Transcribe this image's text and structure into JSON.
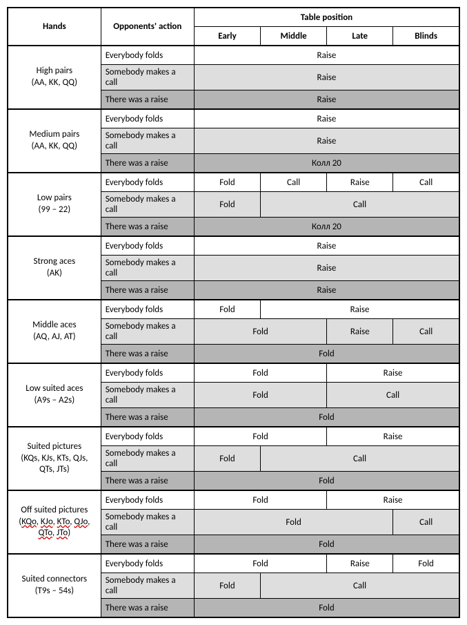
{
  "header": {
    "hands": "Hands",
    "action": "Opponents' action",
    "position": "Table position",
    "early": "Early",
    "middle": "Middle",
    "late": "Late",
    "blinds": "Blinds"
  },
  "opp": {
    "folds": "Everybody folds",
    "calls": "Somebody makes a call",
    "raise": "There was a raise"
  },
  "dec": {
    "raise": "Raise",
    "call": "Call",
    "fold": "Fold",
    "koll20": "Колл 20"
  },
  "hands": {
    "high_pairs_l1": "High pairs",
    "high_pairs_l2": "(AA, KK, QQ)",
    "medium_pairs_l1": "Medium pairs",
    "medium_pairs_l2": "(AA, KK, QQ)",
    "low_pairs_l1": "Low pairs",
    "low_pairs_l2": "(99 – 22)",
    "strong_aces_l1": "Strong aces",
    "strong_aces_l2": "(AK)",
    "middle_aces_l1": "Middle aces",
    "middle_aces_l2": "(AQ, AJ, AT)",
    "low_suited_aces_l1": "Low suited aces",
    "low_suited_aces_l2": "(A9s – A2s)",
    "suited_pics_l1": "Suited pictures",
    "suited_pics_l2": "(KQs, KJs, KTs, QJs, QTs, JTs)",
    "off_suited_pics_l1": "Off suited pictures",
    "off_p1": "KQo",
    "off_p2": "KJo",
    "off_p3": "KTo",
    "off_p4": "QJo",
    "off_p5": "QTo",
    "off_p6": "JTo",
    "suited_conn_l1": "Suited connectors",
    "suited_conn_l2": "(T9s – 54s)"
  }
}
